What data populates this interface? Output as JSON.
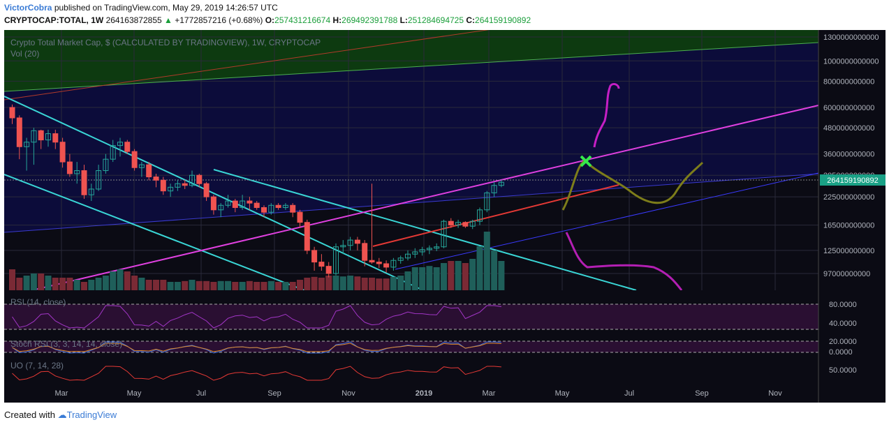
{
  "header": {
    "author": "VictorCobra",
    "published": "published on TradingView.com, May 29, 2019 14:26:57 UTC",
    "symbol": "CRYPTOCAP:TOTAL, 1W",
    "last": "264163872855",
    "change": "+1772857216 (+0.68%)",
    "o_label": "O:",
    "o": "257431216674",
    "h_label": "H:",
    "h": "269492391788",
    "l_label": "L:",
    "l": "251284694725",
    "c_label": "C:",
    "c": "264159190892"
  },
  "panes": {
    "main_title": "Crypto Total Market Cap, $ (CALCULATED BY TRADINGVIEW), 1W, CRYPTOCAP",
    "vol_title": "Vol (20)",
    "rsi_title": "RSI (14, close)",
    "stoch_title": "Stoch RSI (3, 3, 14, 14, close)",
    "uo_title": "UO (7, 14, 28)",
    "price_tag": "264159190892"
  },
  "footer": {
    "created": "Created with",
    "brand": "TradingView"
  },
  "colors": {
    "up": "#26a69a",
    "down": "#ef5350",
    "bg": "#0b0b14"
  },
  "chart_data": {
    "type": "candlestick",
    "title": "Crypto Total Market Cap, $ (CALCULATED BY TRADINGVIEW), 1W, CRYPTOCAP",
    "y_scale": "log",
    "y_ticks": [
      "1300000000000",
      "1000000000000",
      "800000000000",
      "600000000000",
      "480000000000",
      "360000000000",
      "285000000000",
      "225000000000",
      "165000000000",
      "125000000000",
      "97000000000"
    ],
    "y_tick_values": [
      1300,
      1000,
      800,
      600,
      480,
      360,
      285,
      225,
      165,
      125,
      97
    ],
    "x_ticks": [
      "Mar",
      "May",
      "Jul",
      "Sep",
      "Nov",
      "2019",
      "Mar",
      "May",
      "Jul",
      "Sep",
      "Nov"
    ],
    "rsi_ticks": [
      "80.0000",
      "40.0000"
    ],
    "stoch_ticks": [
      "20.0000",
      "0.0000"
    ],
    "uo_ticks": [
      "50.0000"
    ],
    "candles_billions": [
      [
        600,
        620,
        500,
        535
      ],
      [
        535,
        550,
        340,
        390
      ],
      [
        390,
        430,
        300,
        410
      ],
      [
        410,
        480,
        320,
        465
      ],
      [
        465,
        470,
        380,
        420
      ],
      [
        420,
        470,
        390,
        450
      ],
      [
        450,
        470,
        380,
        410
      ],
      [
        410,
        430,
        310,
        330
      ],
      [
        330,
        360,
        280,
        290
      ],
      [
        290,
        330,
        260,
        300
      ],
      [
        300,
        320,
        220,
        230
      ],
      [
        230,
        260,
        215,
        245
      ],
      [
        245,
        320,
        240,
        300
      ],
      [
        300,
        360,
        290,
        340
      ],
      [
        340,
        420,
        330,
        395
      ],
      [
        395,
        430,
        350,
        410
      ],
      [
        410,
        420,
        360,
        370
      ],
      [
        370,
        380,
        300,
        310
      ],
      [
        310,
        330,
        280,
        320
      ],
      [
        320,
        330,
        270,
        280
      ],
      [
        280,
        290,
        250,
        270
      ],
      [
        270,
        280,
        230,
        240
      ],
      [
        240,
        260,
        225,
        250
      ],
      [
        250,
        270,
        240,
        260
      ],
      [
        260,
        270,
        245,
        255
      ],
      [
        255,
        300,
        250,
        285
      ],
      [
        285,
        290,
        250,
        260
      ],
      [
        260,
        265,
        215,
        225
      ],
      [
        225,
        230,
        185,
        195
      ],
      [
        195,
        210,
        180,
        205
      ],
      [
        205,
        230,
        200,
        215
      ],
      [
        215,
        220,
        190,
        200
      ],
      [
        200,
        230,
        195,
        215
      ],
      [
        215,
        225,
        195,
        210
      ],
      [
        210,
        215,
        195,
        200
      ],
      [
        200,
        205,
        180,
        190
      ],
      [
        190,
        210,
        185,
        205
      ],
      [
        205,
        210,
        195,
        200
      ],
      [
        200,
        210,
        195,
        205
      ],
      [
        205,
        210,
        180,
        190
      ],
      [
        190,
        195,
        160,
        170
      ],
      [
        170,
        175,
        120,
        125
      ],
      [
        125,
        130,
        100,
        110
      ],
      [
        110,
        120,
        100,
        105
      ],
      [
        105,
        110,
        93,
        97
      ],
      [
        97,
        135,
        95,
        130
      ],
      [
        130,
        140,
        120,
        132
      ],
      [
        132,
        145,
        125,
        140
      ],
      [
        140,
        145,
        125,
        135
      ],
      [
        135,
        140,
        105,
        112
      ],
      [
        112,
        260,
        108,
        110
      ],
      [
        110,
        115,
        103,
        108
      ],
      [
        108,
        112,
        98,
        104
      ],
      [
        104,
        115,
        100,
        112
      ],
      [
        112,
        118,
        108,
        115
      ],
      [
        115,
        125,
        112,
        120
      ],
      [
        120,
        128,
        115,
        123
      ],
      [
        123,
        130,
        118,
        126
      ],
      [
        126,
        132,
        120,
        128
      ],
      [
        128,
        135,
        124,
        130
      ],
      [
        130,
        175,
        128,
        172
      ],
      [
        172,
        178,
        160,
        165
      ],
      [
        165,
        175,
        160,
        170
      ],
      [
        170,
        172,
        160,
        163
      ],
      [
        163,
        175,
        158,
        172
      ],
      [
        172,
        200,
        165,
        195
      ],
      [
        195,
        240,
        190,
        235
      ],
      [
        235,
        265,
        225,
        255
      ],
      [
        255,
        270,
        250,
        264
      ]
    ],
    "volume_relative": [
      0.5,
      0.3,
      0.35,
      0.4,
      0.4,
      0.35,
      0.3,
      0.3,
      0.3,
      0.25,
      0.2,
      0.25,
      0.3,
      0.35,
      0.45,
      0.5,
      0.45,
      0.35,
      0.3,
      0.25,
      0.25,
      0.25,
      0.2,
      0.2,
      0.22,
      0.25,
      0.22,
      0.22,
      0.2,
      0.22,
      0.22,
      0.2,
      0.2,
      0.22,
      0.2,
      0.2,
      0.22,
      0.2,
      0.2,
      0.2,
      0.25,
      0.3,
      0.32,
      0.3,
      0.35,
      0.35,
      0.33,
      0.35,
      0.33,
      0.3,
      0.3,
      0.28,
      0.28,
      0.32,
      0.35,
      0.45,
      0.55,
      0.55,
      0.58,
      0.55,
      0.65,
      0.7,
      0.7,
      0.65,
      0.75,
      1.05,
      1.4,
      0.95,
      0.7
    ]
  }
}
